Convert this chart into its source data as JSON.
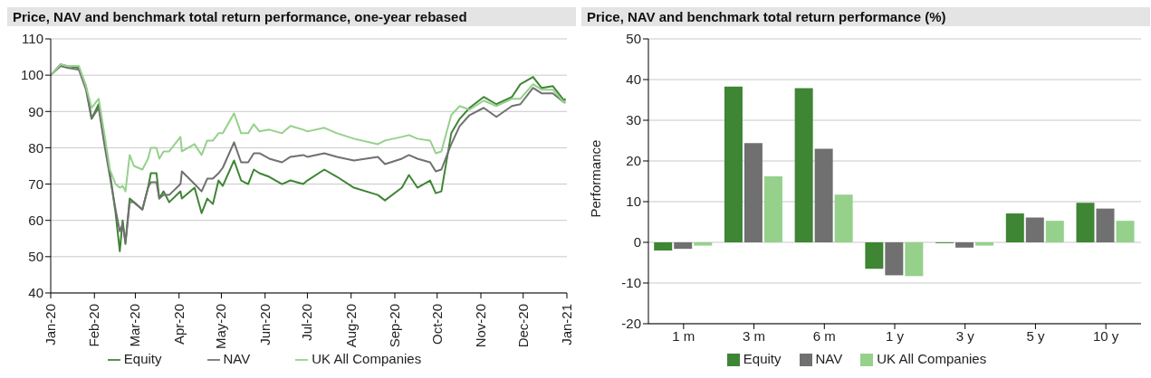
{
  "chart_data": [
    {
      "type": "line",
      "title": "Price, NAV and benchmark total return performance, one-year rebased",
      "x": [
        "2020-01-01",
        "2020-01-08",
        "2020-01-13",
        "2020-01-21",
        "2020-01-26",
        "2020-01-30",
        "2020-02-04",
        "2020-02-08",
        "2020-02-12",
        "2020-02-16",
        "2020-02-19",
        "2020-02-21",
        "2020-02-23",
        "2020-02-26",
        "2020-02-29",
        "2020-03-06",
        "2020-03-10",
        "2020-03-12",
        "2020-03-16",
        "2020-03-18",
        "2020-03-21",
        "2020-03-25",
        "2020-04-02",
        "2020-04-03",
        "2020-04-12",
        "2020-04-17",
        "2020-04-21",
        "2020-04-25",
        "2020-04-29",
        "2020-05-02",
        "2020-05-10",
        "2020-05-15",
        "2020-05-20",
        "2020-05-24",
        "2020-05-28",
        "2020-06-04",
        "2020-06-13",
        "2020-06-19",
        "2020-06-28",
        "2020-07-01",
        "2020-07-13",
        "2020-07-22",
        "2020-08-03",
        "2020-08-20",
        "2020-08-25",
        "2020-09-06",
        "2020-09-11",
        "2020-09-17",
        "2020-09-26",
        "2020-09-30",
        "2020-10-04",
        "2020-10-11",
        "2020-10-17",
        "2020-10-24",
        "2020-11-03",
        "2020-11-12",
        "2020-11-23",
        "2020-11-29",
        "2020-12-08",
        "2020-12-14",
        "2020-12-22",
        "2020-12-30",
        "2020-12-31"
      ],
      "series": [
        {
          "name": "Equity",
          "color": "#3e8534",
          "values": [
            100,
            103,
            102.5,
            102,
            97,
            88,
            92,
            82,
            73,
            62,
            51.5,
            60,
            53.5,
            66,
            65,
            63,
            69,
            73,
            73,
            66,
            68,
            65,
            68,
            66,
            69,
            62,
            66,
            64.5,
            71,
            69.5,
            76.5,
            71,
            70,
            74,
            73,
            72,
            70,
            71,
            70,
            71,
            74,
            72,
            69,
            67,
            65.5,
            69,
            72.5,
            69,
            71,
            67.5,
            68,
            84,
            88,
            91,
            94,
            92,
            94,
            97.5,
            99.5,
            96.5,
            97,
            93,
            93.5
          ]
        },
        {
          "name": "NAV",
          "color": "#707070",
          "values": [
            100,
            102.5,
            102,
            101.5,
            96,
            88,
            91,
            81,
            72,
            63,
            57,
            59,
            54,
            65,
            65,
            63,
            69,
            70.5,
            70.5,
            66,
            67,
            67,
            70,
            73.5,
            70,
            68,
            71.5,
            71.5,
            73,
            74.5,
            81.5,
            76,
            76,
            78.5,
            78.5,
            77,
            76,
            77.5,
            78,
            77.5,
            78.5,
            77.5,
            76.5,
            77.5,
            75.5,
            77,
            78,
            77,
            76,
            73.5,
            74,
            81,
            86,
            89,
            91,
            88.5,
            91.5,
            92,
            96.5,
            95,
            95,
            92.5,
            92.5
          ]
        },
        {
          "name": "UK All Companies",
          "color": "#95d18b",
          "values": [
            100,
            103,
            102.5,
            102.5,
            97,
            91,
            93.5,
            84,
            74,
            70,
            69,
            69.5,
            68,
            78,
            75,
            74,
            77,
            80,
            80,
            77,
            79,
            79,
            83,
            79,
            81,
            78,
            82,
            82,
            84,
            84,
            89.5,
            84,
            84,
            86.5,
            84.5,
            85,
            84,
            86,
            85,
            84.5,
            85.5,
            84,
            82.5,
            81,
            82,
            83,
            83.5,
            82.5,
            82,
            78.5,
            79,
            89,
            91.5,
            90.5,
            93,
            91.5,
            93.5,
            93.5,
            97.5,
            96,
            96,
            92.5,
            93
          ]
        }
      ],
      "xlim": [
        "2020-01-01",
        "2021-01-01"
      ],
      "xticks": [
        {
          "value": "2020-01-01",
          "label": "Jan-20"
        },
        {
          "value": "2020-02-01",
          "label": "Feb-20"
        },
        {
          "value": "2020-03-01",
          "label": "Mar-20"
        },
        {
          "value": "2020-04-01",
          "label": "Apr-20"
        },
        {
          "value": "2020-05-01",
          "label": "May-20"
        },
        {
          "value": "2020-06-01",
          "label": "Jun-20"
        },
        {
          "value": "2020-07-01",
          "label": "Jul-20"
        },
        {
          "value": "2020-08-01",
          "label": "Aug-20"
        },
        {
          "value": "2020-09-01",
          "label": "Sep-20"
        },
        {
          "value": "2020-10-01",
          "label": "Oct-20"
        },
        {
          "value": "2020-11-01",
          "label": "Nov-20"
        },
        {
          "value": "2020-12-01",
          "label": "Dec-20"
        },
        {
          "value": "2021-01-01",
          "label": "Jan-21"
        }
      ],
      "ylim": [
        40,
        110
      ],
      "yticks": [
        40,
        50,
        60,
        70,
        80,
        90,
        100,
        110
      ],
      "grid": "y",
      "legend": "bottom",
      "marker": "none",
      "line_style": "solid"
    },
    {
      "type": "bar",
      "title": "Price, NAV and benchmark total return performance (%)",
      "ylabel": "Performance",
      "categories": [
        "1 m",
        "3 m",
        "6 m",
        "1 y",
        "3 y",
        "5 y",
        "10 y"
      ],
      "series": [
        {
          "name": "Equity",
          "color": "#3e8534",
          "values": [
            -2.0,
            38.3,
            37.9,
            -6.5,
            -0.2,
            7.1,
            9.7
          ]
        },
        {
          "name": "NAV",
          "color": "#707070",
          "values": [
            -1.6,
            24.4,
            23.0,
            -8.1,
            -1.3,
            6.1,
            8.3
          ]
        },
        {
          "name": "UK All Companies",
          "color": "#95d18b",
          "values": [
            -0.8,
            16.2,
            11.7,
            -8.3,
            -0.8,
            5.3,
            5.3
          ]
        }
      ],
      "ylim": [
        -20,
        50
      ],
      "yticks": [
        -20,
        -10,
        0,
        10,
        20,
        30,
        40,
        50
      ],
      "grid": "y",
      "legend": "bottom"
    }
  ]
}
